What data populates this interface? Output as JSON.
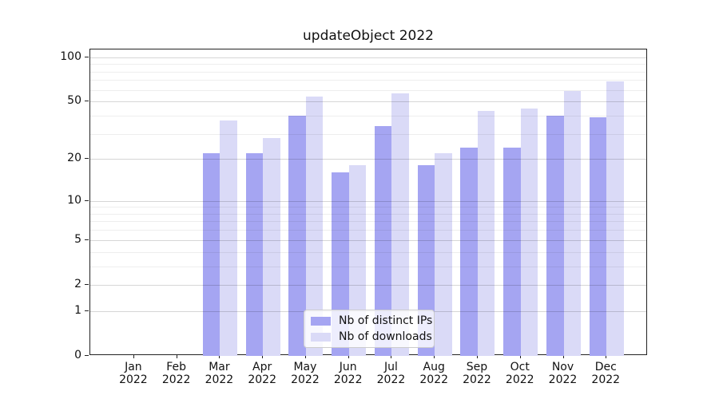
{
  "chart_data": {
    "type": "bar",
    "title": "updateObject 2022",
    "xlabel": "",
    "ylabel": "",
    "yscale": "log1p",
    "ylim": [
      0,
      113
    ],
    "grid": true,
    "legend_position": "lower center",
    "y_major_ticks": [
      0,
      1,
      2,
      5,
      10,
      20,
      50,
      100
    ],
    "y_minor_ticks": [
      3,
      4,
      6,
      7,
      8,
      9,
      30,
      40,
      60,
      70,
      80,
      90
    ],
    "categories": [
      "Jan 2022",
      "Feb 2022",
      "Mar 2022",
      "Apr 2022",
      "May 2022",
      "Jun 2022",
      "Jul 2022",
      "Aug 2022",
      "Sep 2022",
      "Oct 2022",
      "Nov 2022",
      "Dec 2022"
    ],
    "series": [
      {
        "name": "Nb of distinct IPs",
        "color": "#a5a5f2",
        "values": [
          0,
          0,
          22,
          22,
          40,
          16,
          34,
          18,
          24,
          24,
          40,
          39
        ]
      },
      {
        "name": "Nb of downloads",
        "color": "#dadaf7",
        "values": [
          0,
          0,
          37,
          28,
          54,
          18,
          57,
          22,
          43,
          45,
          59,
          69
        ]
      }
    ]
  }
}
